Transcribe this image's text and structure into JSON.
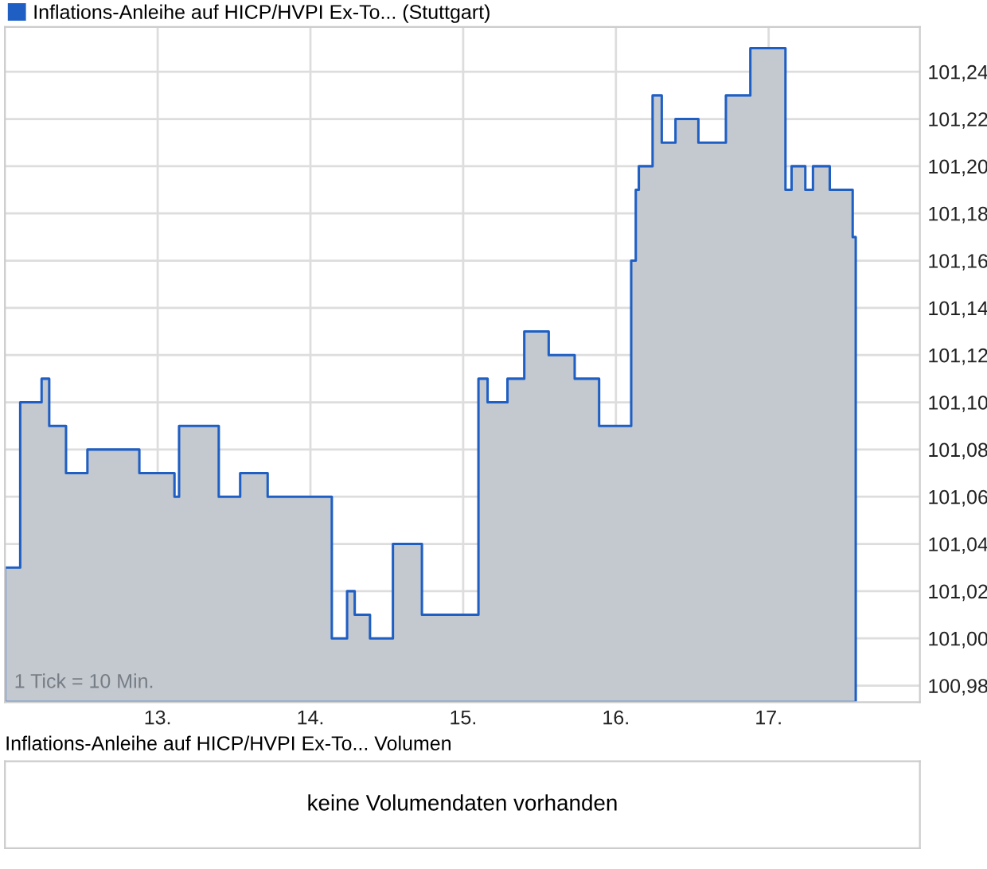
{
  "chart_data": [
    {
      "type": "area",
      "x": [
        12.0,
        12.1,
        12.24,
        12.29,
        12.4,
        12.54,
        12.88,
        13.11,
        13.14,
        13.4,
        13.54,
        13.72,
        14.14,
        14.24,
        14.29,
        14.39,
        14.54,
        14.73,
        15.1,
        15.16,
        15.29,
        15.4,
        15.56,
        15.73,
        15.89,
        16.1,
        16.13,
        16.15,
        16.24,
        16.3,
        16.39,
        16.54,
        16.72,
        16.88,
        17.11,
        17.15,
        17.24,
        17.29,
        17.4,
        17.55,
        17.57
      ],
      "series": [
        {
          "name": "Inflations-Anleihe auf HICP/HVPI Ex-To... (Stuttgart)",
          "color": "#1f5fc4",
          "values": [
            101.03,
            101.1,
            101.11,
            101.09,
            101.07,
            101.08,
            101.07,
            101.06,
            101.09,
            101.06,
            101.07,
            101.06,
            101.0,
            101.02,
            101.01,
            101.0,
            101.04,
            101.01,
            101.11,
            101.1,
            101.11,
            101.13,
            101.12,
            101.11,
            101.09,
            101.16,
            101.19,
            101.2,
            101.23,
            101.21,
            101.22,
            101.21,
            101.23,
            101.25,
            101.19,
            101.2,
            101.19,
            101.2,
            101.19,
            101.17,
            101.17
          ]
        }
      ],
      "xlim": [
        12.0,
        17.99
      ],
      "ylim": [
        100.973,
        101.259
      ],
      "xticks": [
        {
          "value": 13,
          "label": "13."
        },
        {
          "value": 14,
          "label": "14."
        },
        {
          "value": 15,
          "label": "15."
        },
        {
          "value": 16,
          "label": "16."
        },
        {
          "value": 17,
          "label": "17."
        }
      ],
      "yticks": [
        {
          "value": 100.98,
          "label": "100,98"
        },
        {
          "value": 101.0,
          "label": "101,00"
        },
        {
          "value": 101.02,
          "label": "101,02"
        },
        {
          "value": 101.04,
          "label": "101,04"
        },
        {
          "value": 101.06,
          "label": "101,06"
        },
        {
          "value": 101.08,
          "label": "101,08"
        },
        {
          "value": 101.1,
          "label": "101,10"
        },
        {
          "value": 101.12,
          "label": "101,12"
        },
        {
          "value": 101.14,
          "label": "101,14"
        },
        {
          "value": 101.16,
          "label": "101,16"
        },
        {
          "value": 101.18,
          "label": "101,18"
        },
        {
          "value": 101.2,
          "label": "101,20"
        },
        {
          "value": 101.22,
          "label": "101,22"
        },
        {
          "value": 101.24,
          "label": "101,24"
        }
      ],
      "grid": true,
      "legend": "top left",
      "annotations": [
        "1 Tick = 10 Min."
      ]
    },
    {
      "type": "other",
      "title": "Inflations-Anleihe auf HICP/HVPI Ex-To... Volumen",
      "annotations": [
        "keine Volumendaten vorhanden"
      ]
    }
  ]
}
